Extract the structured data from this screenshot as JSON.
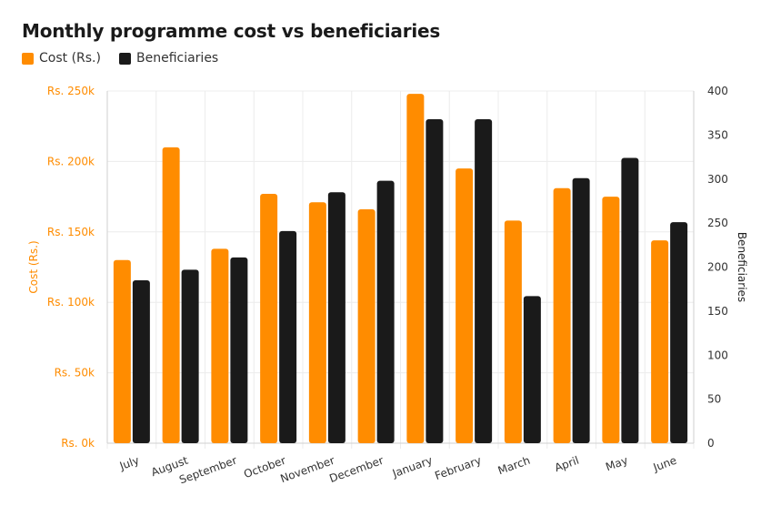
{
  "chart_data": {
    "type": "bar",
    "title": "Monthly programme cost vs beneficiaries",
    "categories": [
      "July",
      "August",
      "September",
      "October",
      "November",
      "December",
      "January",
      "February",
      "March",
      "April",
      "May",
      "June"
    ],
    "series": [
      {
        "name": "Cost (Rs.)",
        "axis": "left",
        "color": "#ff8c00",
        "values": [
          130000,
          210000,
          138000,
          177000,
          171000,
          166000,
          248000,
          195000,
          158000,
          181000,
          175000,
          144000
        ]
      },
      {
        "name": "Beneficiaries",
        "axis": "right",
        "color": "#1a1a1a",
        "values": [
          185,
          197,
          211,
          241,
          285,
          298,
          368,
          368,
          167,
          301,
          324,
          251
        ]
      }
    ],
    "ylabel_left": "Cost (Rs.)",
    "ylabel_right": "Beneficiaries",
    "ylim_left": [
      0,
      250000
    ],
    "ylim_right": [
      0,
      400
    ],
    "yticks_left": [
      "Rs. 0k",
      "Rs. 50k",
      "Rs. 100k",
      "Rs. 150k",
      "Rs. 200k",
      "Rs. 250k"
    ],
    "yticks_right": [
      "0",
      "50",
      "100",
      "150",
      "200",
      "250",
      "300",
      "350",
      "400"
    ],
    "grid": true,
    "legend_position": "top-left",
    "colors": {
      "left_axis_text": "#ff8c00",
      "right_axis_text": "#333333",
      "grid": "#ececec"
    }
  }
}
